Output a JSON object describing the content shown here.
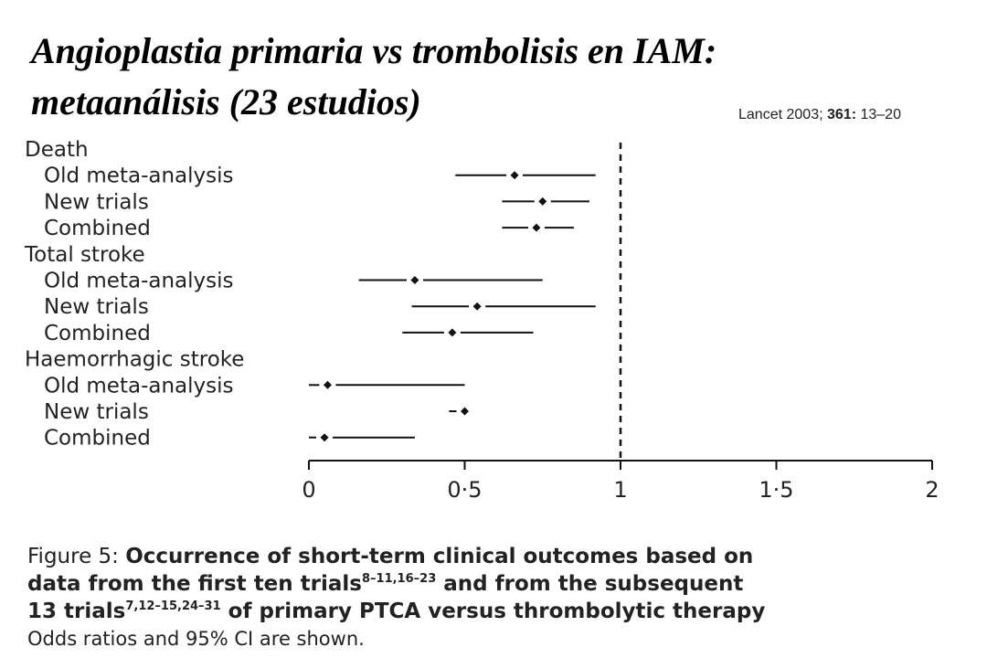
{
  "title": {
    "line1": "Angioplastia primaria vs trombolisis en IAM:",
    "line2": "metaanálisis (23 estudios)"
  },
  "citation": {
    "journal": "Lancet",
    "year": "2003;",
    "volume": "361:",
    "pages": "13–20"
  },
  "chart_data": {
    "type": "forest",
    "title": "",
    "xlabel": "",
    "ylabel": "",
    "xlim": [
      0,
      2
    ],
    "xticks": [
      {
        "value": 0,
        "label": "0"
      },
      {
        "value": 0.5,
        "label": "0·5"
      },
      {
        "value": 1,
        "label": "1"
      },
      {
        "value": 1.5,
        "label": "1·5"
      },
      {
        "value": 2,
        "label": "2"
      }
    ],
    "reference_line": 1,
    "groups": [
      {
        "name": "Death",
        "rows": [
          {
            "label": "Old meta-analysis",
            "or": 0.66,
            "lo": 0.47,
            "hi": 0.92
          },
          {
            "label": "New trials",
            "or": 0.75,
            "lo": 0.62,
            "hi": 0.9
          },
          {
            "label": "Combined",
            "or": 0.73,
            "lo": 0.62,
            "hi": 0.85
          }
        ]
      },
      {
        "name": "Total stroke",
        "rows": [
          {
            "label": "Old meta-analysis",
            "or": 0.34,
            "lo": 0.16,
            "hi": 0.75
          },
          {
            "label": "New trials",
            "or": 0.54,
            "lo": 0.33,
            "hi": 0.92
          },
          {
            "label": "Combined",
            "or": 0.46,
            "lo": 0.3,
            "hi": 0.72
          }
        ]
      },
      {
        "name": "Haemorrhagic stroke",
        "rows": [
          {
            "label": "Old meta-analysis",
            "or": 0.06,
            "lo": 0.0,
            "hi": 0.5
          },
          {
            "label": "New trials",
            "or": 0.5,
            "lo": 0.45,
            "hi": 0.51
          },
          {
            "label": "Combined",
            "or": 0.05,
            "lo": 0.0,
            "hi": 0.34
          }
        ]
      }
    ]
  },
  "caption": {
    "prefix": "Figure 5: ",
    "line1_bold": "Occurrence of short-term clinical outcomes based on",
    "line2_bold": "data from the first ten trials",
    "line2_sup": "8–11,16–23",
    "line2_bold_end": " and from the subsequent",
    "line3_bold": "13 trials",
    "line3_sup": "7,12–15,24–31",
    "line3_bold_end": " of primary PTCA versus thrombolytic therapy",
    "note": "Odds ratios and 95% CI are shown."
  }
}
